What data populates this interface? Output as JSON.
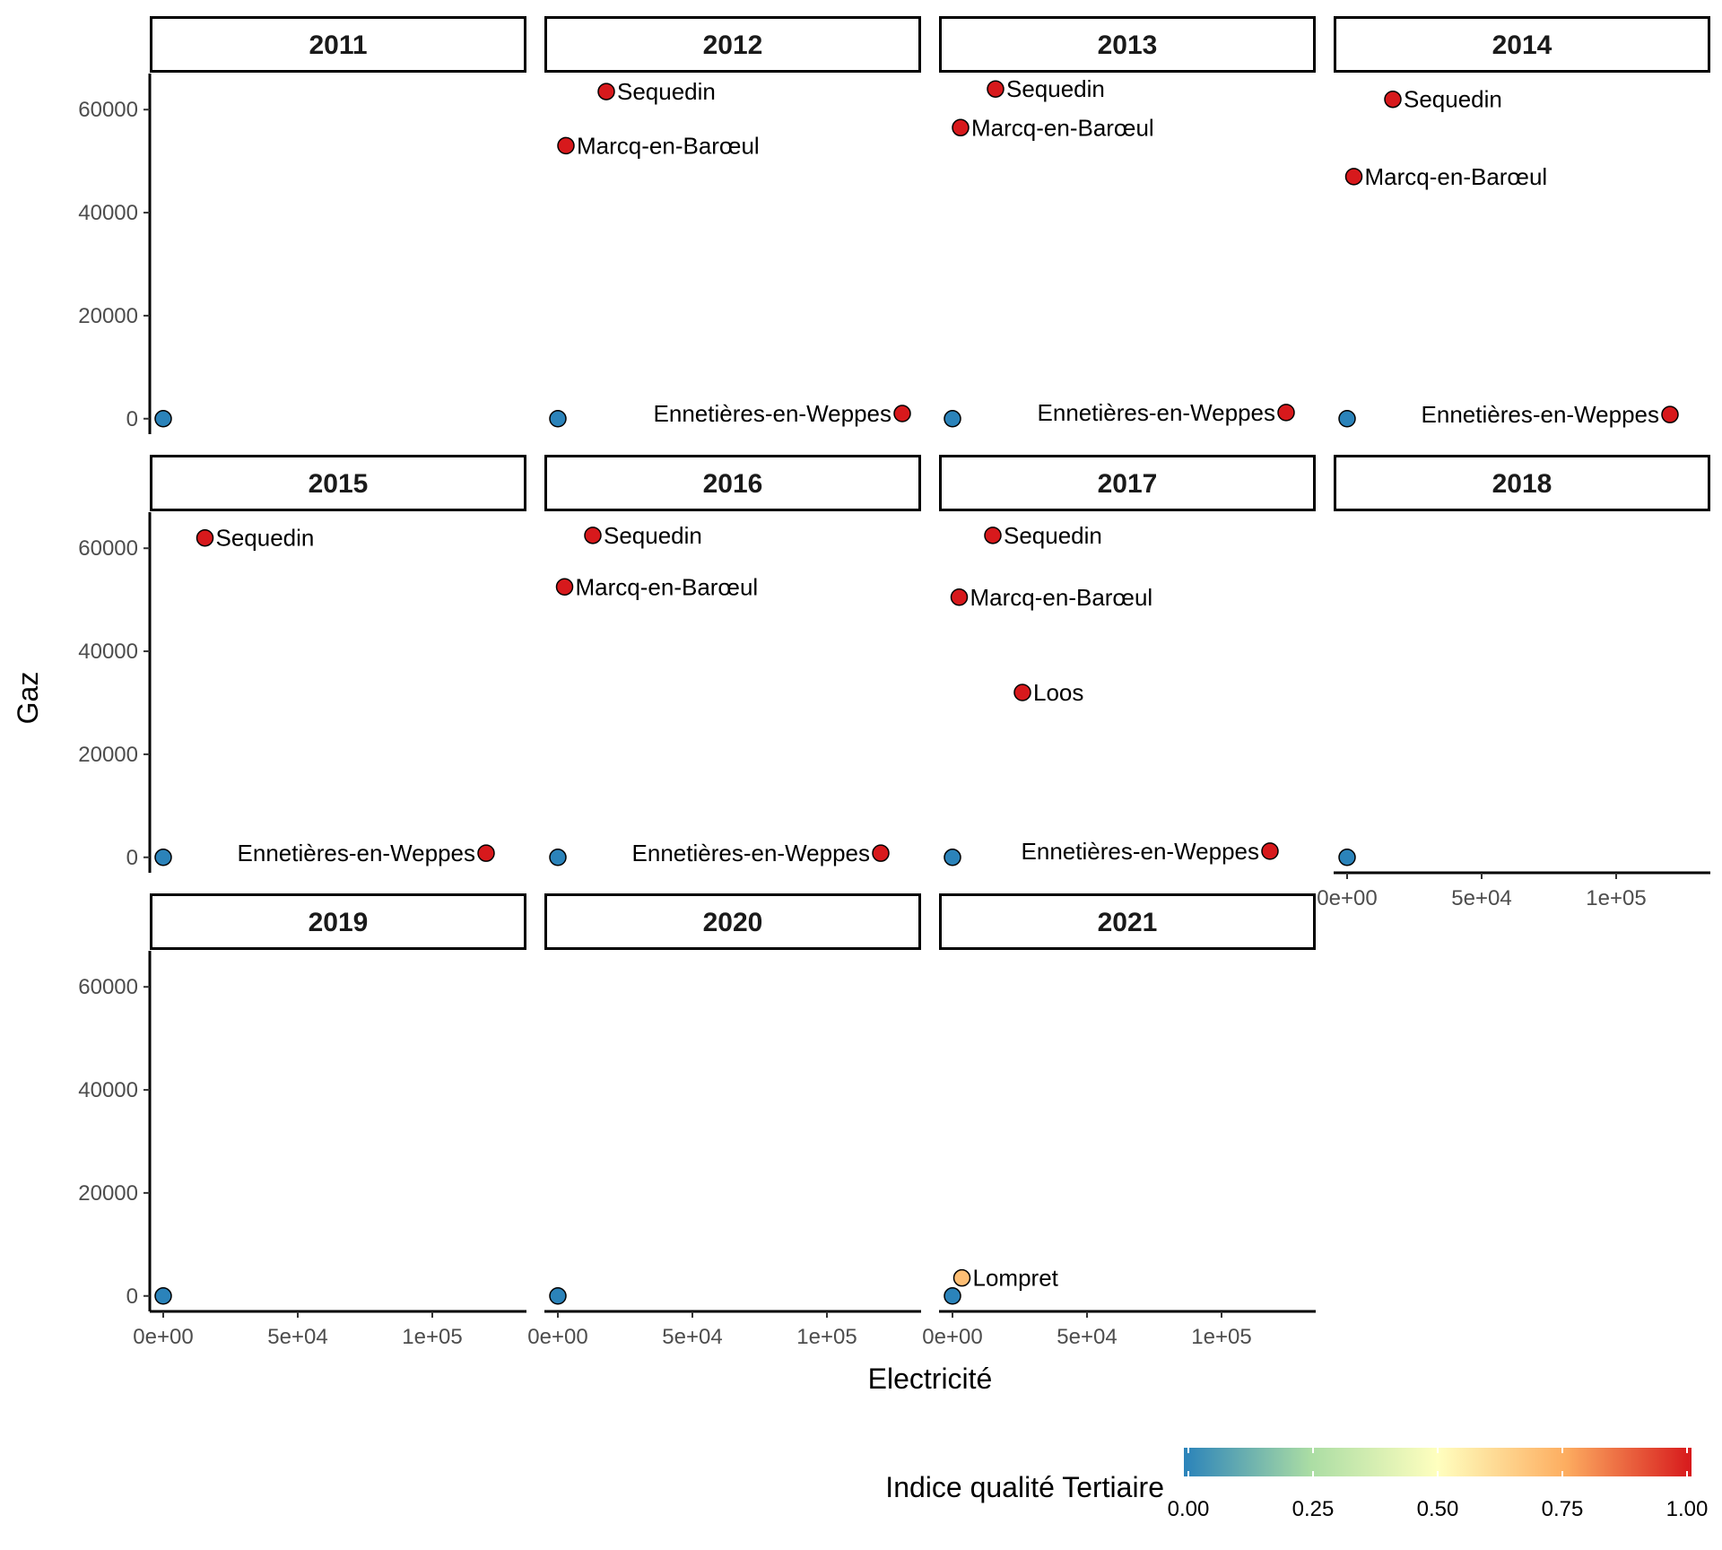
{
  "chart_data": {
    "type": "scatter",
    "xlabel": "Electricité",
    "ylabel": "Gaz",
    "xlim": [
      -5000,
      135000
    ],
    "ylim": [
      -3000,
      67000
    ],
    "x_ticks": [
      {
        "value": 0,
        "label": "0e+00"
      },
      {
        "value": 50000,
        "label": "5e+04"
      },
      {
        "value": 100000,
        "label": "1e+05"
      }
    ],
    "y_ticks": [
      {
        "value": 0,
        "label": "0"
      },
      {
        "value": 20000,
        "label": "20000"
      },
      {
        "value": 40000,
        "label": "40000"
      },
      {
        "value": 60000,
        "label": "60000"
      }
    ],
    "legend": {
      "title": "Indice qualité Tertiaire",
      "position": "bottom",
      "colors": [
        "#2b83ba",
        "#abdda4",
        "#ffffbf",
        "#fdae61",
        "#d7191c"
      ],
      "ticks": [
        {
          "value": 0,
          "label": "0.00"
        },
        {
          "value": 0.25,
          "label": "0.25"
        },
        {
          "value": 0.5,
          "label": "0.50"
        },
        {
          "value": 0.75,
          "label": "0.75"
        },
        {
          "value": 1,
          "label": "1.00"
        }
      ]
    },
    "panels": [
      {
        "year": "2011",
        "points": [
          {
            "x": 0,
            "y": 0,
            "quality": 0.0,
            "label": ""
          }
        ]
      },
      {
        "year": "2012",
        "points": [
          {
            "x": 0,
            "y": 0,
            "quality": 0.0,
            "label": ""
          },
          {
            "x": 18000,
            "y": 63500,
            "quality": 1.0,
            "label": "Sequedin"
          },
          {
            "x": 3000,
            "y": 53000,
            "quality": 1.0,
            "label": "Marcq-en-Barœul"
          },
          {
            "x": 128000,
            "y": 1000,
            "quality": 1.0,
            "label": "Ennetières-en-Weppes"
          }
        ]
      },
      {
        "year": "2013",
        "points": [
          {
            "x": 0,
            "y": 0,
            "quality": 0.0,
            "label": ""
          },
          {
            "x": 16000,
            "y": 64000,
            "quality": 1.0,
            "label": "Sequedin"
          },
          {
            "x": 3000,
            "y": 56500,
            "quality": 1.0,
            "label": "Marcq-en-Barœul"
          },
          {
            "x": 124000,
            "y": 1200,
            "quality": 1.0,
            "label": "Ennetières-en-Weppes"
          }
        ]
      },
      {
        "year": "2014",
        "points": [
          {
            "x": 0,
            "y": 0,
            "quality": 0.0,
            "label": ""
          },
          {
            "x": 17000,
            "y": 62000,
            "quality": 1.0,
            "label": "Sequedin"
          },
          {
            "x": 2500,
            "y": 47000,
            "quality": 1.0,
            "label": "Marcq-en-Barœul"
          },
          {
            "x": 120000,
            "y": 800,
            "quality": 1.0,
            "label": "Ennetières-en-Weppes"
          }
        ]
      },
      {
        "year": "2015",
        "points": [
          {
            "x": 0,
            "y": 0,
            "quality": 0.0,
            "label": ""
          },
          {
            "x": 15500,
            "y": 62000,
            "quality": 1.0,
            "label": "Sequedin"
          },
          {
            "x": 120000,
            "y": 800,
            "quality": 1.0,
            "label": "Ennetières-en-Weppes"
          }
        ]
      },
      {
        "year": "2016",
        "points": [
          {
            "x": 0,
            "y": 0,
            "quality": 0.0,
            "label": ""
          },
          {
            "x": 13000,
            "y": 62500,
            "quality": 1.0,
            "label": "Sequedin"
          },
          {
            "x": 2500,
            "y": 52500,
            "quality": 1.0,
            "label": "Marcq-en-Barœul"
          },
          {
            "x": 120000,
            "y": 800,
            "quality": 1.0,
            "label": "Ennetières-en-Weppes"
          }
        ]
      },
      {
        "year": "2017",
        "points": [
          {
            "x": 0,
            "y": 0,
            "quality": 0.0,
            "label": ""
          },
          {
            "x": 15000,
            "y": 62500,
            "quality": 1.0,
            "label": "Sequedin"
          },
          {
            "x": 2500,
            "y": 50500,
            "quality": 1.0,
            "label": "Marcq-en-Barœul"
          },
          {
            "x": 26000,
            "y": 32000,
            "quality": 1.0,
            "label": "Loos"
          },
          {
            "x": 118000,
            "y": 1200,
            "quality": 1.0,
            "label": "Ennetières-en-Weppes"
          }
        ]
      },
      {
        "year": "2018",
        "points": [
          {
            "x": 0,
            "y": 0,
            "quality": 0.0,
            "label": ""
          }
        ]
      },
      {
        "year": "2019",
        "points": [
          {
            "x": 0,
            "y": 0,
            "quality": 0.0,
            "label": ""
          }
        ]
      },
      {
        "year": "2020",
        "points": [
          {
            "x": 0,
            "y": 0,
            "quality": 0.0,
            "label": ""
          }
        ]
      },
      {
        "year": "2021",
        "points": [
          {
            "x": 0,
            "y": 0,
            "quality": 0.0,
            "label": ""
          },
          {
            "x": 3500,
            "y": 3500,
            "quality": 0.7,
            "label": "Lompret"
          }
        ]
      }
    ]
  }
}
